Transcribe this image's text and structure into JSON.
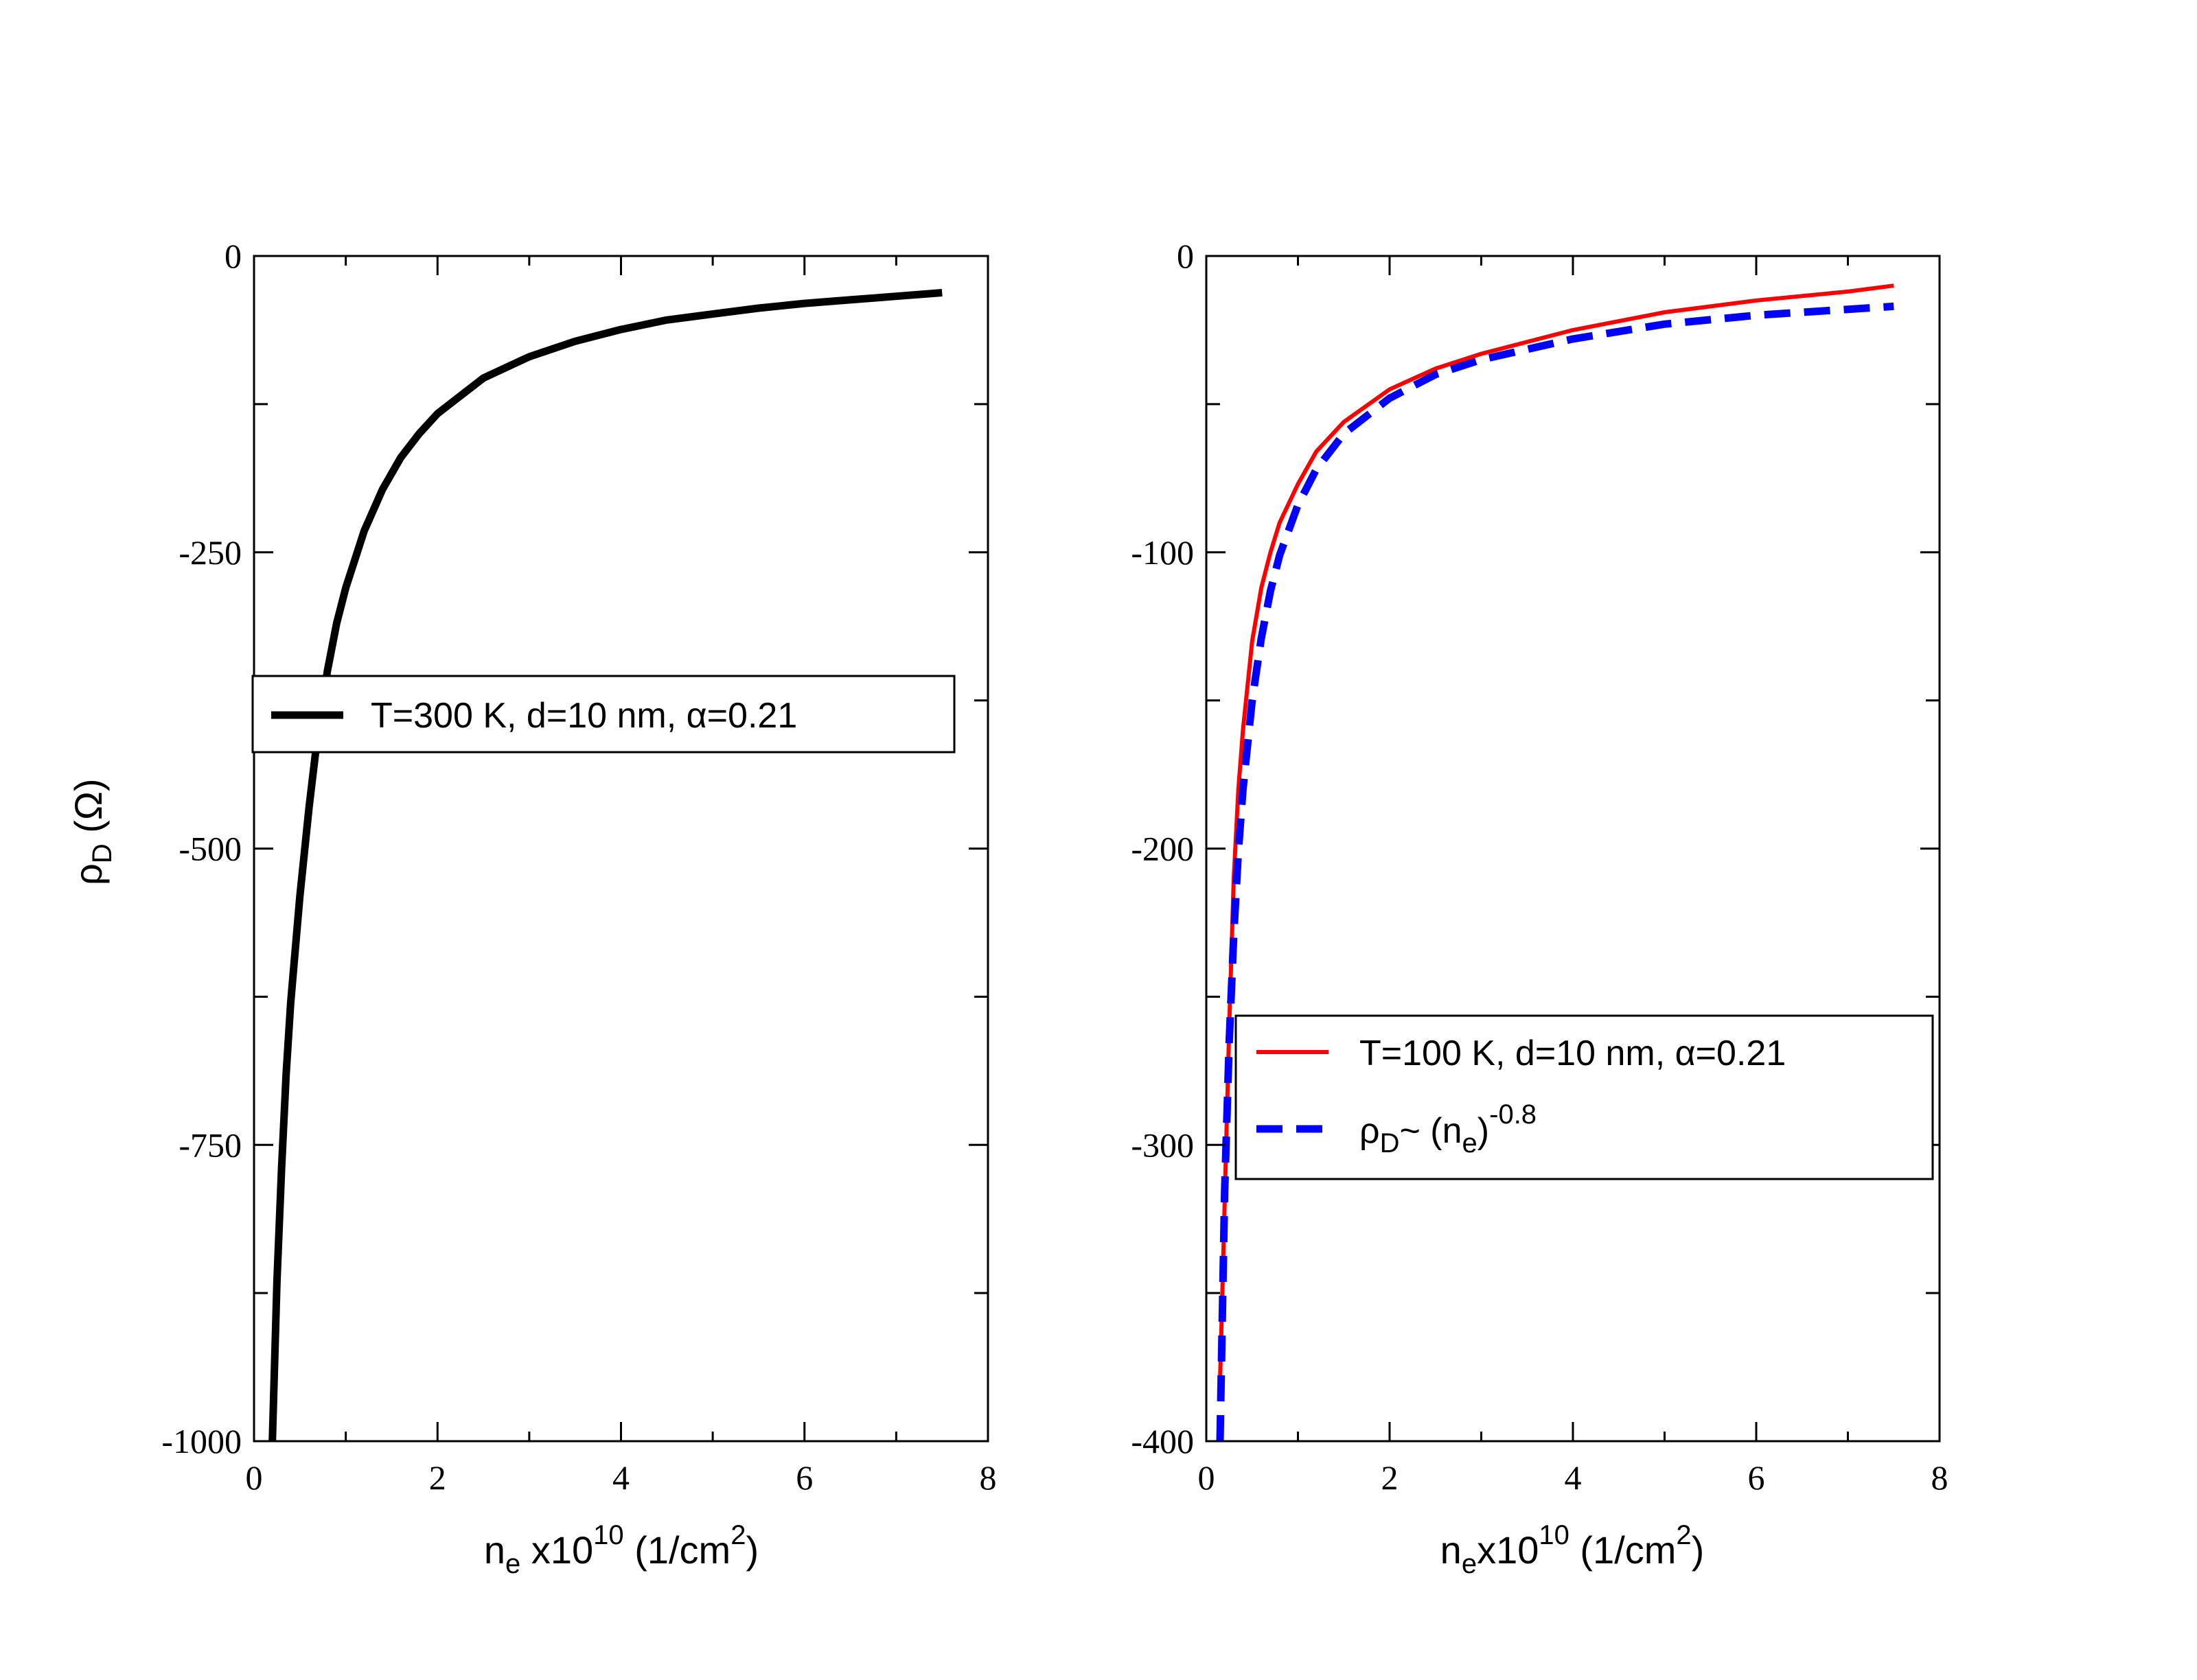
{
  "chart_data": [
    {
      "type": "line",
      "xlim": [
        0,
        8
      ],
      "ylim": [
        -1000,
        0
      ],
      "xticks": [
        "0",
        "2",
        "4",
        "6",
        "8"
      ],
      "yticks": [
        "-1000",
        "-750",
        "-500",
        "-250",
        "0"
      ],
      "xlabel": {
        "base": "n",
        "sub": "e",
        "mid": " x10",
        "sup": "10",
        "unit_pre": "   (1/cm",
        "unit_sup": "2",
        "unit_post": ")"
      },
      "ylabel": {
        "base": "ρ",
        "sub": "D",
        "unit": "   (Ω)"
      },
      "legend_position": "center-right",
      "series": [
        {
          "name": "T=300 K, d=10 nm, α=0.21",
          "color": "#000000",
          "style": "solid-thick",
          "x": [
            0.2,
            0.25,
            0.3,
            0.35,
            0.4,
            0.5,
            0.6,
            0.7,
            0.8,
            0.9,
            1.0,
            1.2,
            1.4,
            1.6,
            1.8,
            2.0,
            2.5,
            3.0,
            3.5,
            4.0,
            4.5,
            5.0,
            5.5,
            6.0,
            6.5,
            7.0,
            7.5
          ],
          "y": [
            -1000,
            -865,
            -770,
            -690,
            -630,
            -540,
            -465,
            -400,
            -350,
            -310,
            -280,
            -232,
            -197,
            -170,
            -150,
            -133,
            -103,
            -85,
            -72,
            -62,
            -54,
            -49,
            -44,
            -40,
            -37,
            -34,
            -31
          ]
        }
      ]
    },
    {
      "type": "line",
      "xlim": [
        0,
        8
      ],
      "ylim": [
        -400,
        0
      ],
      "xticks": [
        "0",
        "2",
        "4",
        "6",
        "8"
      ],
      "yticks": [
        "-400",
        "-300",
        "-200",
        "-100",
        "0"
      ],
      "xlabel": {
        "base": "n",
        "sub": "e",
        "mid": "x10",
        "sup": "10",
        "unit_pre": "   (1/cm",
        "unit_sup": "2",
        "unit_post": ")"
      },
      "legend_position": "lower-right",
      "series": [
        {
          "name": "T=100 K, d=10 nm, α=0.21",
          "color": "#ff0000",
          "style": "solid",
          "x": [
            0.15,
            0.2,
            0.25,
            0.3,
            0.35,
            0.4,
            0.5,
            0.6,
            0.7,
            0.8,
            1.0,
            1.2,
            1.5,
            2.0,
            2.5,
            3.0,
            4.0,
            5.0,
            6.0,
            7.0,
            7.5
          ],
          "y": [
            -380,
            -320,
            -260,
            -210,
            -180,
            -160,
            -130,
            -112,
            -100,
            -90,
            -77,
            -66,
            -56,
            -45,
            -38,
            -33,
            -25,
            -19,
            -15,
            -12,
            -10
          ]
        },
        {
          "name_parts": {
            "base": "ρ",
            "sub": "D",
            "mid": "~ (n",
            "sub2": "e",
            "close": ")",
            "sup": "-0.8"
          },
          "color": "#0000ff",
          "style": "dashed",
          "x": [
            0.15,
            0.2,
            0.25,
            0.3,
            0.35,
            0.4,
            0.5,
            0.6,
            0.7,
            0.8,
            1.0,
            1.2,
            1.5,
            2.0,
            2.5,
            3.0,
            4.0,
            5.0,
            6.0,
            7.0,
            7.5
          ],
          "y": [
            -400,
            -316,
            -265,
            -229,
            -201,
            -180,
            -150,
            -129,
            -113,
            -101,
            -84,
            -72,
            -60,
            -48,
            -40,
            -35,
            -28,
            -23,
            -20,
            -18,
            -17
          ]
        }
      ]
    }
  ]
}
